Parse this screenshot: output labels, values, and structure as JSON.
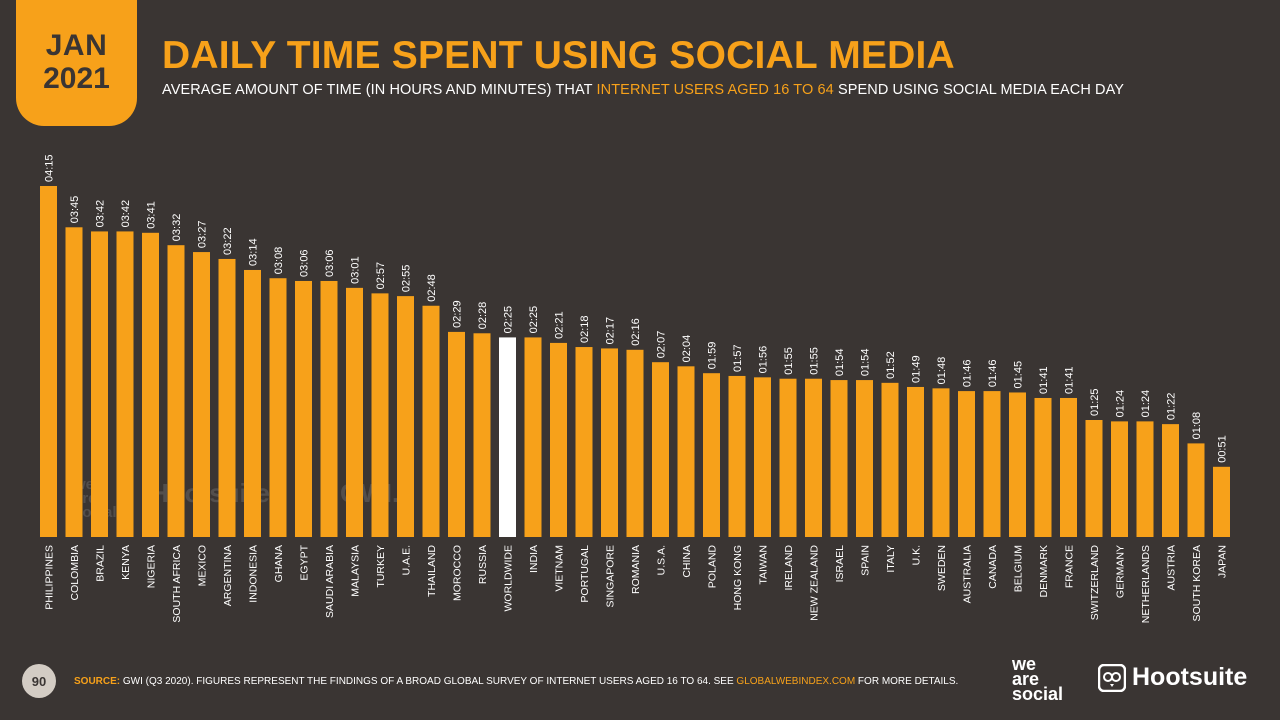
{
  "header": {
    "badge_month": "JAN",
    "badge_year": "2021",
    "title": "DAILY TIME SPENT USING SOCIAL MEDIA",
    "subtitle_pre": "AVERAGE AMOUNT OF TIME (IN HOURS AND MINUTES) THAT ",
    "subtitle_highlight": "INTERNET USERS AGED 16 TO 64",
    "subtitle_post": " SPEND USING SOCIAL MEDIA EACH DAY"
  },
  "watermarks": {
    "was_line1": "we",
    "was_line2": "are",
    "was_line3": "social",
    "hootsuite": "Hootsuite",
    "gwi": "GWI."
  },
  "footer": {
    "page_number": "90",
    "source_label": "SOURCE:",
    "source_text": " GWI (Q3 2020). FIGURES REPRESENT THE FINDINGS OF A BROAD GLOBAL SURVEY OF INTERNET USERS AGED 16 TO 64. SEE ",
    "source_link": "GLOBALWEBINDEX.COM",
    "source_end": " FOR MORE DETAILS.",
    "logo_was_line1": "we",
    "logo_was_line2": "are",
    "logo_was_line3": "social",
    "logo_hootsuite": "Hootsuite"
  },
  "colors": {
    "background": "#3a3533",
    "bar": "#f7a11a",
    "highlight_bar": "#ffffff",
    "text": "#ffffff"
  },
  "chart_data": {
    "type": "bar",
    "title": "DAILY TIME SPENT USING SOCIAL MEDIA",
    "value_unit": "minutes",
    "highlight_category": "WORLDWIDE",
    "categories": [
      "PHILIPPINES",
      "COLOMBIA",
      "BRAZIL",
      "KENYA",
      "NIGERIA",
      "SOUTH AFRICA",
      "MEXICO",
      "ARGENTINA",
      "INDONESIA",
      "GHANA",
      "EGYPT",
      "SAUDI ARABIA",
      "MALAYSIA",
      "TURKEY",
      "U.A.E.",
      "THAILAND",
      "MOROCCO",
      "RUSSIA",
      "WORLDWIDE",
      "INDIA",
      "VIETNAM",
      "PORTUGAL",
      "SINGAPORE",
      "ROMANIA",
      "U.S.A.",
      "CHINA",
      "POLAND",
      "HONG KONG",
      "TAIWAN",
      "IRELAND",
      "NEW ZEALAND",
      "ISRAEL",
      "SPAIN",
      "ITALY",
      "U.K.",
      "SWEDEN",
      "AUSTRALIA",
      "CANADA",
      "BELGIUM",
      "DENMARK",
      "FRANCE",
      "SWITZERLAND",
      "GERMANY",
      "NETHERLANDS",
      "AUSTRIA",
      "SOUTH KOREA",
      "JAPAN"
    ],
    "labels": [
      "04:15",
      "03:45",
      "03:42",
      "03:42",
      "03:41",
      "03:32",
      "03:27",
      "03:22",
      "03:14",
      "03:08",
      "03:06",
      "03:06",
      "03:01",
      "02:57",
      "02:55",
      "02:48",
      "02:29",
      "02:28",
      "02:25",
      "02:25",
      "02:21",
      "02:18",
      "02:17",
      "02:16",
      "02:07",
      "02:04",
      "01:59",
      "01:57",
      "01:56",
      "01:55",
      "01:55",
      "01:54",
      "01:54",
      "01:52",
      "01:49",
      "01:48",
      "01:46",
      "01:46",
      "01:45",
      "01:41",
      "01:41",
      "01:25",
      "01:24",
      "01:24",
      "01:22",
      "01:08",
      "00:51"
    ],
    "values": [
      255,
      225,
      222,
      222,
      221,
      212,
      207,
      202,
      194,
      188,
      186,
      186,
      181,
      177,
      175,
      168,
      149,
      148,
      145,
      145,
      141,
      138,
      137,
      136,
      127,
      124,
      119,
      117,
      116,
      115,
      115,
      114,
      114,
      112,
      109,
      108,
      106,
      106,
      105,
      101,
      101,
      85,
      84,
      84,
      82,
      68,
      51
    ],
    "ylim": [
      0,
      255
    ]
  }
}
